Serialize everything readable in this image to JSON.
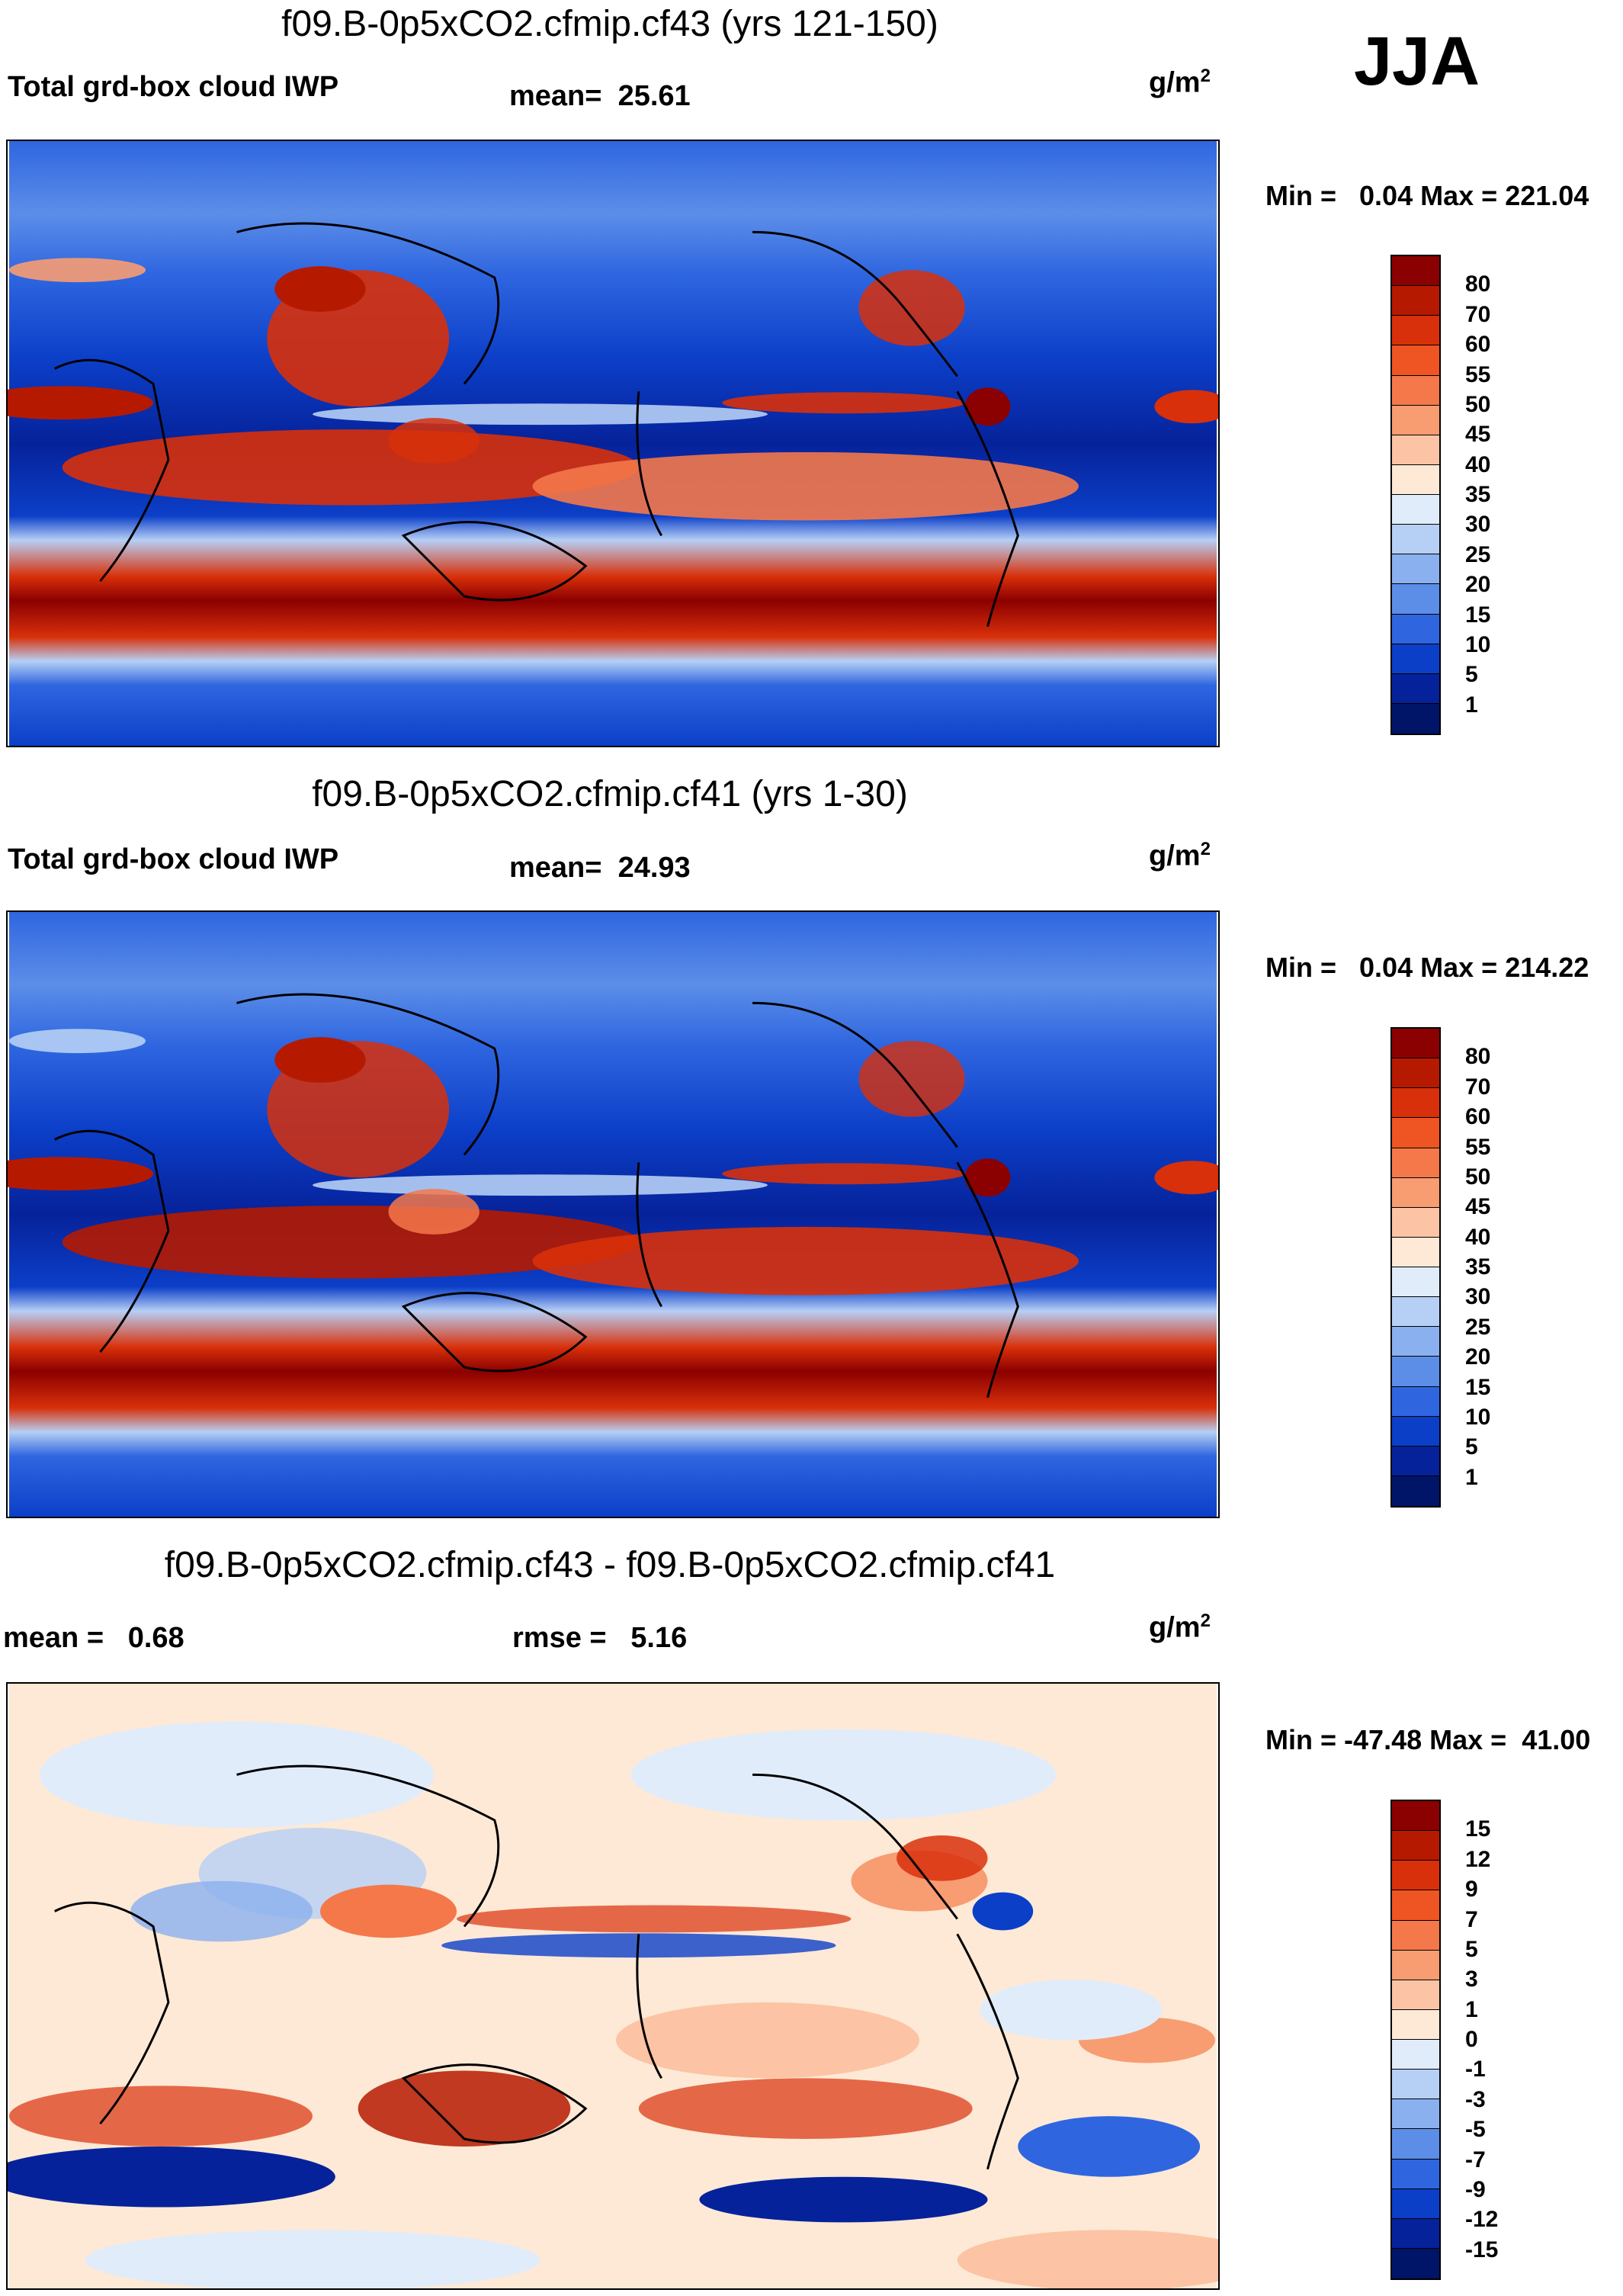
{
  "season": "JJA",
  "units_base": "g/m",
  "units_exp": "2",
  "panels": [
    {
      "title": "f09.B-0p5xCO2.cfmip.cf43 (yrs 121-150)",
      "left_label": "Total grd-box cloud IWP",
      "stat1_label": "mean=",
      "stat1_value": "25.61",
      "stat2_label": "",
      "stat2_value": "",
      "min_label": "Min =",
      "min_value": "0.04",
      "max_label": "Max =",
      "max_value": "221.04"
    },
    {
      "title": "f09.B-0p5xCO2.cfmip.cf41 (yrs 1-30)",
      "left_label": "Total grd-box cloud IWP",
      "stat1_label": "mean=",
      "stat1_value": "24.93",
      "stat2_label": "",
      "stat2_value": "",
      "min_label": "Min =",
      "min_value": "0.04",
      "max_label": "Max =",
      "max_value": "214.22"
    },
    {
      "title": "f09.B-0p5xCO2.cfmip.cf43 - f09.B-0p5xCO2.cfmip.cf41",
      "left_label": "",
      "stat1_label": "mean =",
      "stat1_value": "0.68",
      "stat2_label": "rmse =",
      "stat2_value": "5.16",
      "min_label": "Min =",
      "min_value": "-47.48",
      "max_label": "Max =",
      "max_value": "41.00"
    }
  ],
  "chart_data": [
    {
      "type": "heatmap",
      "title": "f09.B-0p5xCO2.cfmip.cf43 (yrs 121-150)",
      "variable": "Total grd-box cloud IWP",
      "units": "g/m2",
      "season": "JJA",
      "mean": 25.61,
      "min": 0.04,
      "max": 221.04,
      "colorbar_levels": [
        80,
        70,
        60,
        55,
        50,
        45,
        40,
        35,
        30,
        25,
        20,
        15,
        10,
        5,
        1
      ],
      "colorbar_colors": [
        "#8b0000",
        "#b51a00",
        "#d8300a",
        "#ee5522",
        "#f4784a",
        "#f89c72",
        "#fcc4a4",
        "#fde9d6",
        "#e1ecfb",
        "#b6cff5",
        "#8ab0ef",
        "#5c8ee8",
        "#2f66e0",
        "#0c3fc8",
        "#06229a",
        "#001468"
      ]
    },
    {
      "type": "heatmap",
      "title": "f09.B-0p5xCO2.cfmip.cf41 (yrs 1-30)",
      "variable": "Total grd-box cloud IWP",
      "units": "g/m2",
      "season": "JJA",
      "mean": 24.93,
      "min": 0.04,
      "max": 214.22,
      "colorbar_levels": [
        80,
        70,
        60,
        55,
        50,
        45,
        40,
        35,
        30,
        25,
        20,
        15,
        10,
        5,
        1
      ],
      "colorbar_colors": [
        "#8b0000",
        "#b51a00",
        "#d8300a",
        "#ee5522",
        "#f4784a",
        "#f89c72",
        "#fcc4a4",
        "#fde9d6",
        "#e1ecfb",
        "#b6cff5",
        "#8ab0ef",
        "#5c8ee8",
        "#2f66e0",
        "#0c3fc8",
        "#06229a",
        "#001468"
      ]
    },
    {
      "type": "heatmap",
      "title": "f09.B-0p5xCO2.cfmip.cf43 - f09.B-0p5xCO2.cfmip.cf41",
      "units": "g/m2",
      "season": "JJA",
      "mean": 0.68,
      "rmse": 5.16,
      "min": -47.48,
      "max": 41.0,
      "colorbar_levels": [
        15,
        12,
        9,
        7,
        5,
        3,
        1,
        0,
        -1,
        -3,
        -5,
        -7,
        -9,
        -12,
        -15
      ],
      "colorbar_colors": [
        "#8b0000",
        "#b51a00",
        "#d8300a",
        "#ee5522",
        "#f4784a",
        "#f89c72",
        "#fcc4a4",
        "#fde9d6",
        "#e1ecfb",
        "#b6cff5",
        "#8ab0ef",
        "#5c8ee8",
        "#2f66e0",
        "#0c3fc8",
        "#06229a",
        "#001468"
      ]
    }
  ]
}
